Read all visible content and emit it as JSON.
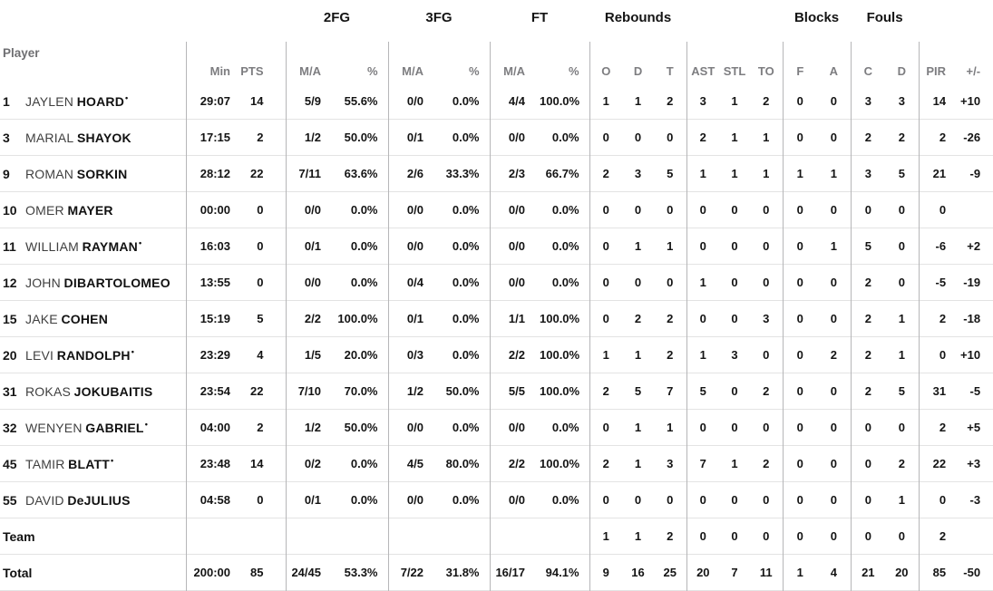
{
  "table": {
    "starter_mark": "•",
    "groups": [
      {
        "label": "",
        "span": 3
      },
      {
        "label": "2FG",
        "span": 2
      },
      {
        "label": "3FG",
        "span": 2
      },
      {
        "label": "FT",
        "span": 2
      },
      {
        "label": "Rebounds",
        "span": 3
      },
      {
        "label": "",
        "span": 3
      },
      {
        "label": "Blocks",
        "span": 2
      },
      {
        "label": "Fouls",
        "span": 2
      },
      {
        "label": "",
        "span": 2
      }
    ],
    "columns": [
      {
        "key": "player",
        "label": "Player",
        "bdr": true
      },
      {
        "key": "min",
        "label": "Min"
      },
      {
        "key": "pts",
        "label": "PTS",
        "bdr": true
      },
      {
        "key": "fg2_ma",
        "label": "M/A"
      },
      {
        "key": "fg2_pct",
        "label": "%",
        "bdr": true
      },
      {
        "key": "fg3_ma",
        "label": "M/A"
      },
      {
        "key": "fg3_pct",
        "label": "%",
        "bdr": true
      },
      {
        "key": "ft_ma",
        "label": "M/A"
      },
      {
        "key": "ft_pct",
        "label": "%",
        "bdr": true
      },
      {
        "key": "reb_o",
        "label": "O"
      },
      {
        "key": "reb_d",
        "label": "D"
      },
      {
        "key": "reb_t",
        "label": "T",
        "bdr": true
      },
      {
        "key": "ast",
        "label": "AST"
      },
      {
        "key": "stl",
        "label": "STL"
      },
      {
        "key": "to",
        "label": "TO",
        "bdr": true
      },
      {
        "key": "blk_f",
        "label": "F"
      },
      {
        "key": "blk_a",
        "label": "A",
        "bdr": true
      },
      {
        "key": "foul_c",
        "label": "C"
      },
      {
        "key": "foul_d",
        "label": "D",
        "bdr": true
      },
      {
        "key": "pir",
        "label": "PIR"
      },
      {
        "key": "pm",
        "label": "+/-"
      }
    ],
    "rows": [
      {
        "num": "1",
        "first": "JAYLEN",
        "last": "HOARD",
        "starter": true,
        "min": "29:07",
        "pts": "14",
        "fg2_ma": "5/9",
        "fg2_pct": "55.6%",
        "fg3_ma": "0/0",
        "fg3_pct": "0.0%",
        "ft_ma": "4/4",
        "ft_pct": "100.0%",
        "reb_o": "1",
        "reb_d": "1",
        "reb_t": "2",
        "ast": "3",
        "stl": "1",
        "to": "2",
        "blk_f": "0",
        "blk_a": "0",
        "foul_c": "3",
        "foul_d": "3",
        "pir": "14",
        "pm": "+10"
      },
      {
        "num": "3",
        "first": "MARIAL",
        "last": "SHAYOK",
        "starter": false,
        "min": "17:15",
        "pts": "2",
        "fg2_ma": "1/2",
        "fg2_pct": "50.0%",
        "fg3_ma": "0/1",
        "fg3_pct": "0.0%",
        "ft_ma": "0/0",
        "ft_pct": "0.0%",
        "reb_o": "0",
        "reb_d": "0",
        "reb_t": "0",
        "ast": "2",
        "stl": "1",
        "to": "1",
        "blk_f": "0",
        "blk_a": "0",
        "foul_c": "2",
        "foul_d": "2",
        "pir": "2",
        "pm": "-26"
      },
      {
        "num": "9",
        "first": "ROMAN",
        "last": "SORKIN",
        "starter": false,
        "min": "28:12",
        "pts": "22",
        "fg2_ma": "7/11",
        "fg2_pct": "63.6%",
        "fg3_ma": "2/6",
        "fg3_pct": "33.3%",
        "ft_ma": "2/3",
        "ft_pct": "66.7%",
        "reb_o": "2",
        "reb_d": "3",
        "reb_t": "5",
        "ast": "1",
        "stl": "1",
        "to": "1",
        "blk_f": "1",
        "blk_a": "1",
        "foul_c": "3",
        "foul_d": "5",
        "pir": "21",
        "pm": "-9"
      },
      {
        "num": "10",
        "first": "OMER",
        "last": "MAYER",
        "starter": false,
        "min": "00:00",
        "pts": "0",
        "fg2_ma": "0/0",
        "fg2_pct": "0.0%",
        "fg3_ma": "0/0",
        "fg3_pct": "0.0%",
        "ft_ma": "0/0",
        "ft_pct": "0.0%",
        "reb_o": "0",
        "reb_d": "0",
        "reb_t": "0",
        "ast": "0",
        "stl": "0",
        "to": "0",
        "blk_f": "0",
        "blk_a": "0",
        "foul_c": "0",
        "foul_d": "0",
        "pir": "0",
        "pm": ""
      },
      {
        "num": "11",
        "first": "WILLIAM",
        "last": "RAYMAN",
        "starter": true,
        "min": "16:03",
        "pts": "0",
        "fg2_ma": "0/1",
        "fg2_pct": "0.0%",
        "fg3_ma": "0/0",
        "fg3_pct": "0.0%",
        "ft_ma": "0/0",
        "ft_pct": "0.0%",
        "reb_o": "0",
        "reb_d": "1",
        "reb_t": "1",
        "ast": "0",
        "stl": "0",
        "to": "0",
        "blk_f": "0",
        "blk_a": "1",
        "foul_c": "5",
        "foul_d": "0",
        "pir": "-6",
        "pm": "+2"
      },
      {
        "num": "12",
        "first": "JOHN",
        "last": "DIBARTOLOMEO",
        "starter": false,
        "min": "13:55",
        "pts": "0",
        "fg2_ma": "0/0",
        "fg2_pct": "0.0%",
        "fg3_ma": "0/4",
        "fg3_pct": "0.0%",
        "ft_ma": "0/0",
        "ft_pct": "0.0%",
        "reb_o": "0",
        "reb_d": "0",
        "reb_t": "0",
        "ast": "1",
        "stl": "0",
        "to": "0",
        "blk_f": "0",
        "blk_a": "0",
        "foul_c": "2",
        "foul_d": "0",
        "pir": "-5",
        "pm": "-19"
      },
      {
        "num": "15",
        "first": "JAKE",
        "last": "COHEN",
        "starter": false,
        "min": "15:19",
        "pts": "5",
        "fg2_ma": "2/2",
        "fg2_pct": "100.0%",
        "fg3_ma": "0/1",
        "fg3_pct": "0.0%",
        "ft_ma": "1/1",
        "ft_pct": "100.0%",
        "reb_o": "0",
        "reb_d": "2",
        "reb_t": "2",
        "ast": "0",
        "stl": "0",
        "to": "3",
        "blk_f": "0",
        "blk_a": "0",
        "foul_c": "2",
        "foul_d": "1",
        "pir": "2",
        "pm": "-18"
      },
      {
        "num": "20",
        "first": "LEVI",
        "last": "RANDOLPH",
        "starter": true,
        "min": "23:29",
        "pts": "4",
        "fg2_ma": "1/5",
        "fg2_pct": "20.0%",
        "fg3_ma": "0/3",
        "fg3_pct": "0.0%",
        "ft_ma": "2/2",
        "ft_pct": "100.0%",
        "reb_o": "1",
        "reb_d": "1",
        "reb_t": "2",
        "ast": "1",
        "stl": "3",
        "to": "0",
        "blk_f": "0",
        "blk_a": "2",
        "foul_c": "2",
        "foul_d": "1",
        "pir": "0",
        "pm": "+10"
      },
      {
        "num": "31",
        "first": "ROKAS",
        "last": "JOKUBAITIS",
        "starter": false,
        "min": "23:54",
        "pts": "22",
        "fg2_ma": "7/10",
        "fg2_pct": "70.0%",
        "fg3_ma": "1/2",
        "fg3_pct": "50.0%",
        "ft_ma": "5/5",
        "ft_pct": "100.0%",
        "reb_o": "2",
        "reb_d": "5",
        "reb_t": "7",
        "ast": "5",
        "stl": "0",
        "to": "2",
        "blk_f": "0",
        "blk_a": "0",
        "foul_c": "2",
        "foul_d": "5",
        "pir": "31",
        "pm": "-5"
      },
      {
        "num": "32",
        "first": "WENYEN",
        "last": "GABRIEL",
        "starter": true,
        "min": "04:00",
        "pts": "2",
        "fg2_ma": "1/2",
        "fg2_pct": "50.0%",
        "fg3_ma": "0/0",
        "fg3_pct": "0.0%",
        "ft_ma": "0/0",
        "ft_pct": "0.0%",
        "reb_o": "0",
        "reb_d": "1",
        "reb_t": "1",
        "ast": "0",
        "stl": "0",
        "to": "0",
        "blk_f": "0",
        "blk_a": "0",
        "foul_c": "0",
        "foul_d": "0",
        "pir": "2",
        "pm": "+5"
      },
      {
        "num": "45",
        "first": "TAMIR",
        "last": "BLATT",
        "starter": true,
        "min": "23:48",
        "pts": "14",
        "fg2_ma": "0/2",
        "fg2_pct": "0.0%",
        "fg3_ma": "4/5",
        "fg3_pct": "80.0%",
        "ft_ma": "2/2",
        "ft_pct": "100.0%",
        "reb_o": "2",
        "reb_d": "1",
        "reb_t": "3",
        "ast": "7",
        "stl": "1",
        "to": "2",
        "blk_f": "0",
        "blk_a": "0",
        "foul_c": "0",
        "foul_d": "2",
        "pir": "22",
        "pm": "+3"
      },
      {
        "num": "55",
        "first": "DAVID",
        "last": "DeJULIUS",
        "starter": false,
        "min": "04:58",
        "pts": "0",
        "fg2_ma": "0/1",
        "fg2_pct": "0.0%",
        "fg3_ma": "0/0",
        "fg3_pct": "0.0%",
        "ft_ma": "0/0",
        "ft_pct": "0.0%",
        "reb_o": "0",
        "reb_d": "0",
        "reb_t": "0",
        "ast": "0",
        "stl": "0",
        "to": "0",
        "blk_f": "0",
        "blk_a": "0",
        "foul_c": "0",
        "foul_d": "1",
        "pir": "0",
        "pm": "-3"
      },
      {
        "label": "Team",
        "reb_o": "1",
        "reb_d": "1",
        "reb_t": "2",
        "ast": "0",
        "stl": "0",
        "to": "0",
        "blk_f": "0",
        "blk_a": "0",
        "foul_c": "0",
        "foul_d": "0",
        "pir": "2",
        "pm": ""
      },
      {
        "label": "Total",
        "min": "200:00",
        "pts": "85",
        "fg2_ma": "24/45",
        "fg2_pct": "53.3%",
        "fg3_ma": "7/22",
        "fg3_pct": "31.8%",
        "ft_ma": "16/17",
        "ft_pct": "94.1%",
        "reb_o": "9",
        "reb_d": "16",
        "reb_t": "25",
        "ast": "20",
        "stl": "7",
        "to": "11",
        "blk_f": "1",
        "blk_a": "4",
        "foul_c": "21",
        "foul_d": "20",
        "pir": "85",
        "pm": "-50"
      }
    ]
  }
}
